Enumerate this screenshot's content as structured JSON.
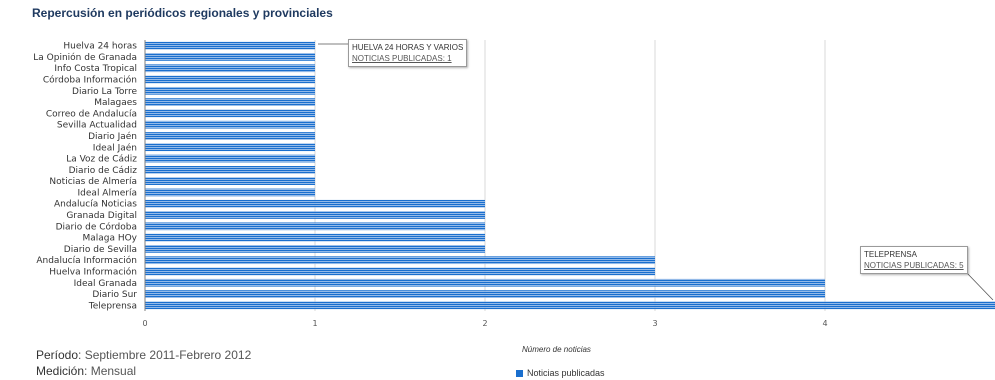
{
  "chart_data": {
    "type": "bar",
    "orientation": "horizontal",
    "title": "Repercusión en periódicos regionales y provinciales",
    "xlabel": "Número de noticias",
    "ylabel": "",
    "xlim": [
      0,
      5
    ],
    "xticks": [
      0,
      1,
      2,
      3,
      4
    ],
    "grid": true,
    "legend_position": "bottom",
    "categories": [
      "Huelva 24 horas",
      "La Opinión de Granada",
      "Info Costa Tropical",
      "Córdoba Información",
      "Diario La Torre",
      "Malagaes",
      "Correo de Andalucía",
      "Sevilla Actualidad",
      "Diario Jaén",
      "Ideal Jaén",
      "La Voz de Cádiz",
      "Diario de Cádiz",
      "Noticias de Almería",
      "Ideal Almería",
      "Andalucía Noticias",
      "Granada Digital",
      "Diario de Córdoba",
      "Malaga HOy",
      "Diario de Sevilla",
      "Andalucía Información",
      "Huelva Información",
      "Ideal Granada",
      "Diario Sur",
      "Teleprensa"
    ],
    "series": [
      {
        "name": "Noticias publicadas",
        "color": "#1a6fce",
        "values": [
          1,
          1,
          1,
          1,
          1,
          1,
          1,
          1,
          1,
          1,
          1,
          1,
          1,
          1,
          2,
          2,
          2,
          2,
          2,
          3,
          3,
          4,
          4,
          5
        ]
      }
    ],
    "annotations": [
      {
        "line1": "HUELVA 24 HORAS Y VARIOS",
        "line2": "NOTICIAS PUBLICADAS: 1"
      },
      {
        "line1": "TELEPRENSA",
        "line2": "NOTICIAS PUBLICADAS: 5"
      }
    ]
  },
  "footer": {
    "periodo_label": "Período",
    "periodo_value": "Septiembre 2011-Febrero 2012",
    "medicion_label": "Medición",
    "medicion_value": "Mensual"
  },
  "colors": {
    "title": "#1f3a60",
    "grid": "#d9d9d9",
    "axis": "#7f7f7f"
  }
}
